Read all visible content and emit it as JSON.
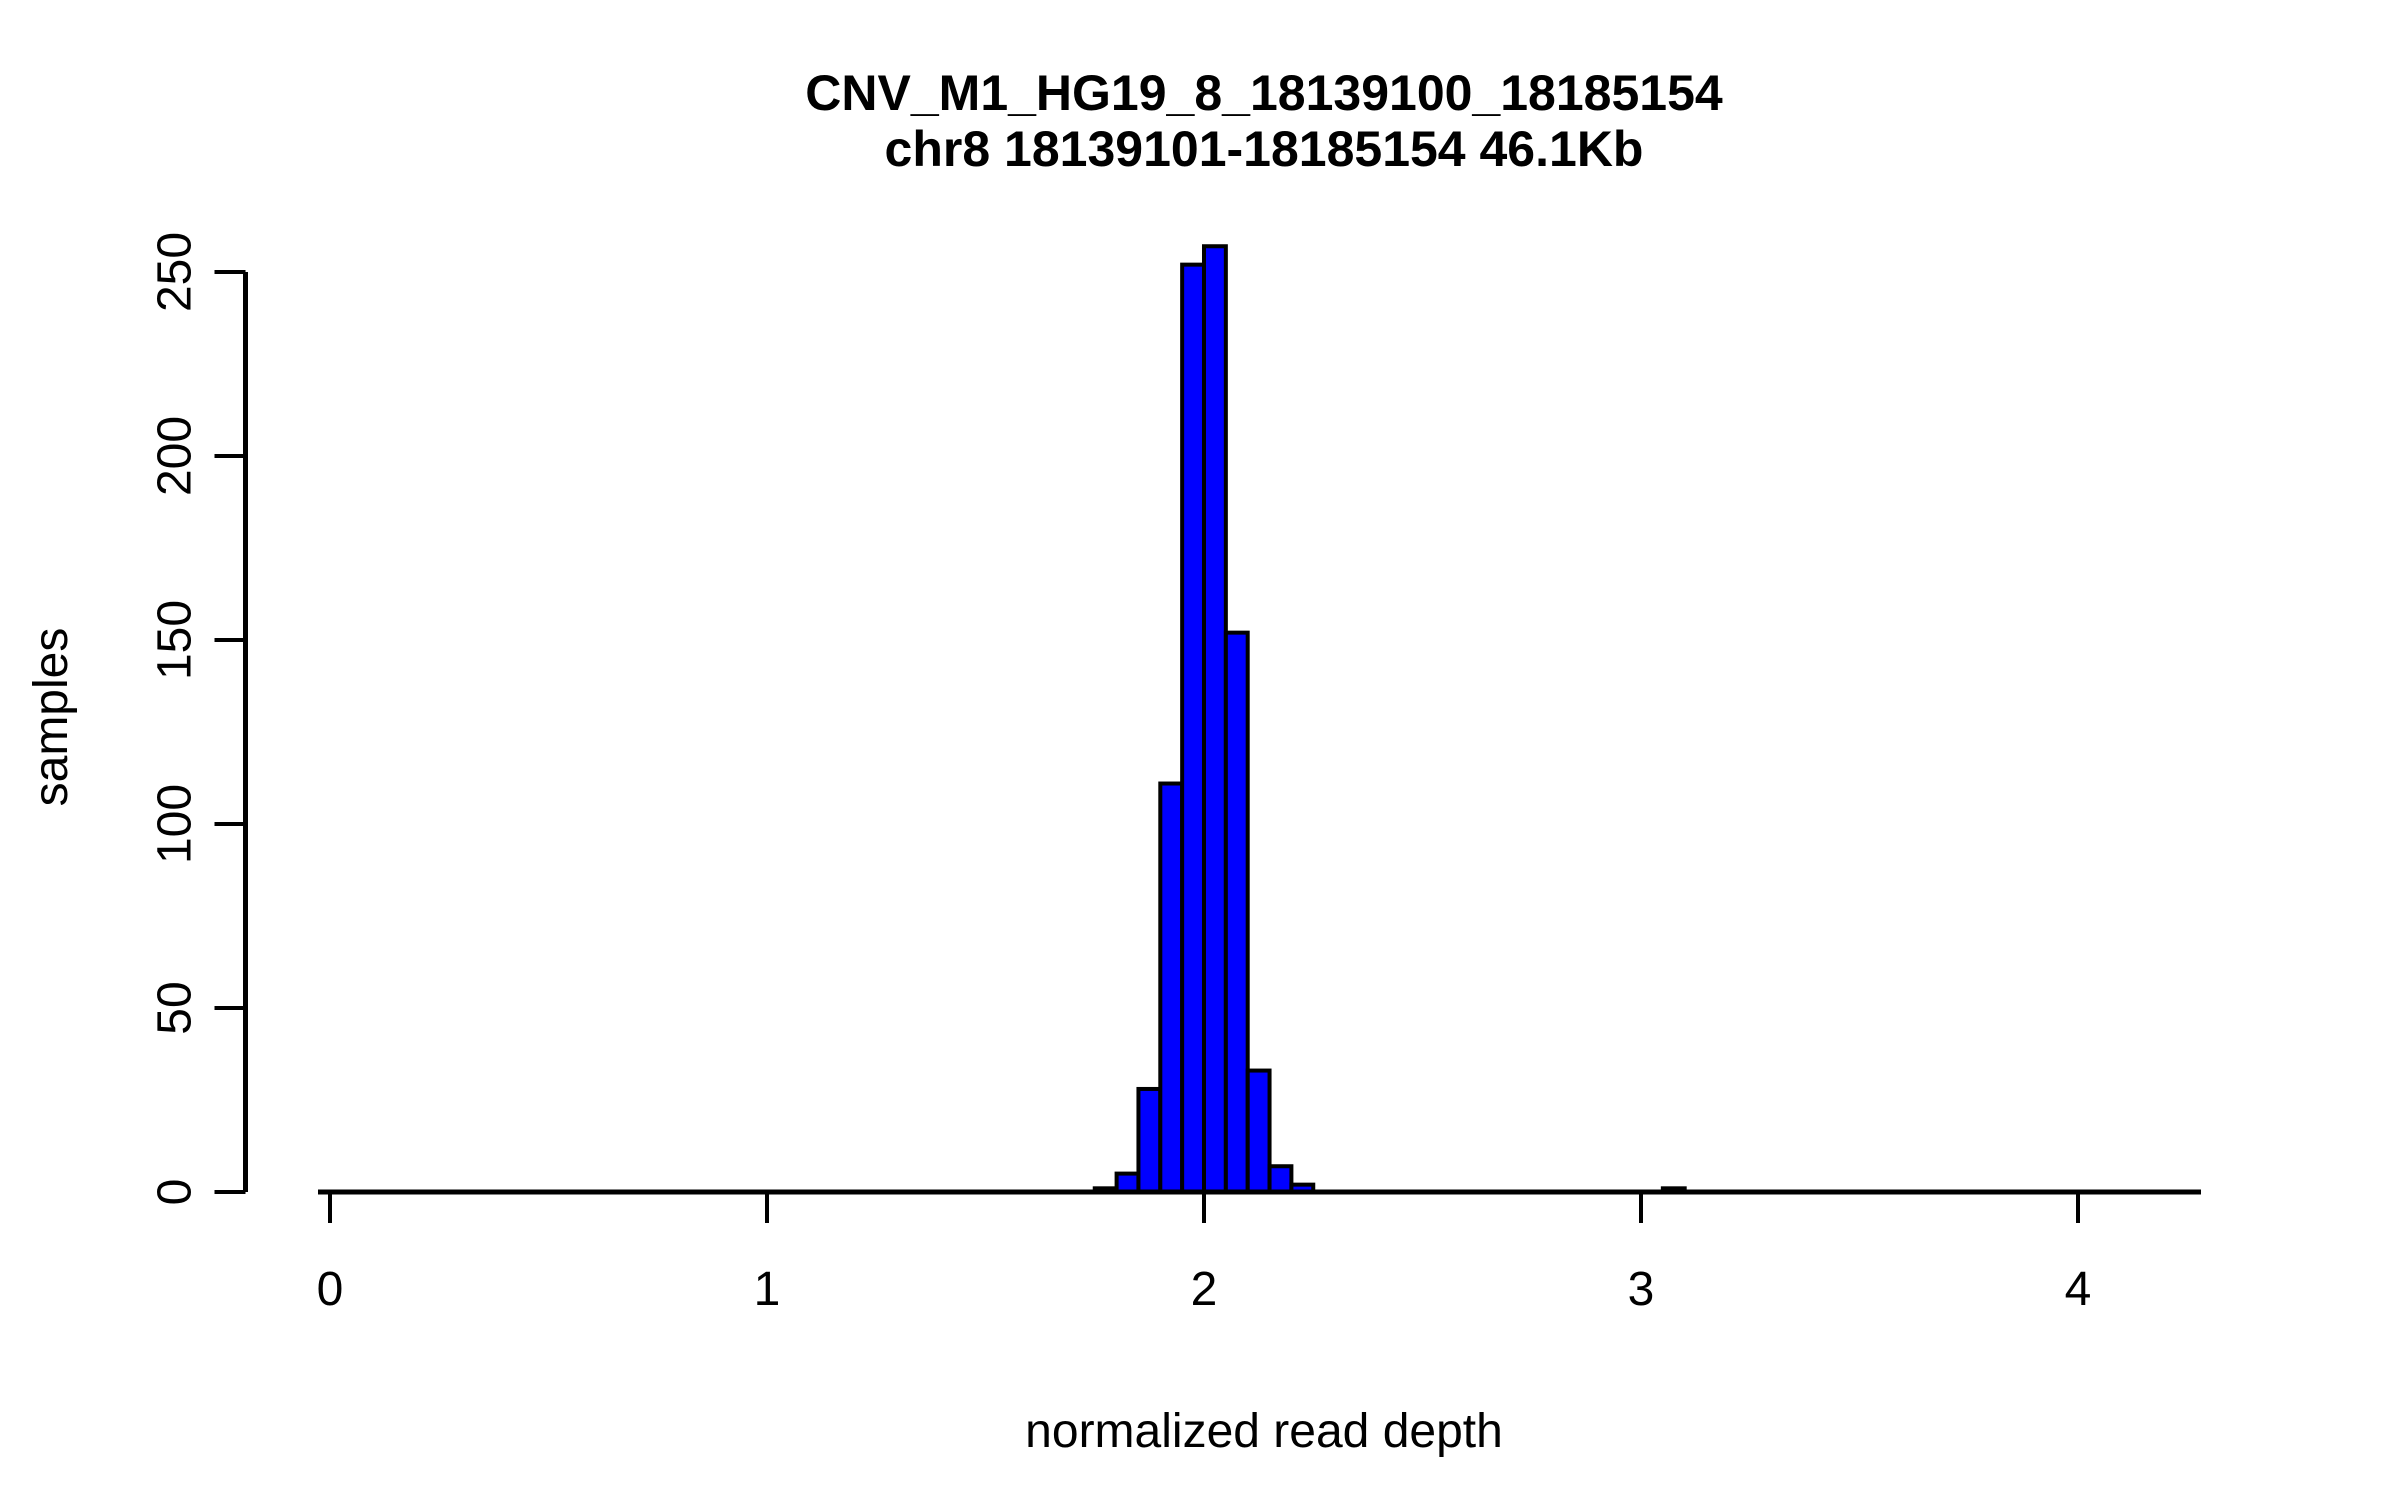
{
  "title": {
    "line1": "CNV_M1_HG19_8_18139100_18185154",
    "line2": "chr8 18139101-18185154 46.1Kb"
  },
  "chart_data": {
    "type": "bar",
    "subtype": "histogram",
    "title": "CNV_M1_HG19_8_18139100_18185154",
    "subtitle": "chr8 18139101-18185154 46.1Kb",
    "xlabel": "normalized read depth",
    "ylabel": "samples",
    "bin_width": 0.05,
    "bins": [
      {
        "start": 1.75,
        "count": 1
      },
      {
        "start": 1.8,
        "count": 5
      },
      {
        "start": 1.85,
        "count": 28
      },
      {
        "start": 1.9,
        "count": 111
      },
      {
        "start": 1.95,
        "count": 252
      },
      {
        "start": 2.0,
        "count": 257
      },
      {
        "start": 2.05,
        "count": 152
      },
      {
        "start": 2.1,
        "count": 33
      },
      {
        "start": 2.15,
        "count": 7
      },
      {
        "start": 2.2,
        "count": 2
      },
      {
        "start": 3.05,
        "count": 1
      }
    ],
    "x_ticks": [
      0,
      1,
      2,
      3,
      4
    ],
    "y_ticks": [
      0,
      50,
      100,
      150,
      200,
      250
    ],
    "xlim": [
      -0.03,
      4.28
    ],
    "ylim": [
      0,
      250
    ],
    "grid": false,
    "legend": null,
    "colors": {
      "bar_fill": "#0000FF",
      "bar_stroke": "#000000",
      "axis": "#000000",
      "text": "#000000",
      "background": "#FFFFFF"
    }
  }
}
